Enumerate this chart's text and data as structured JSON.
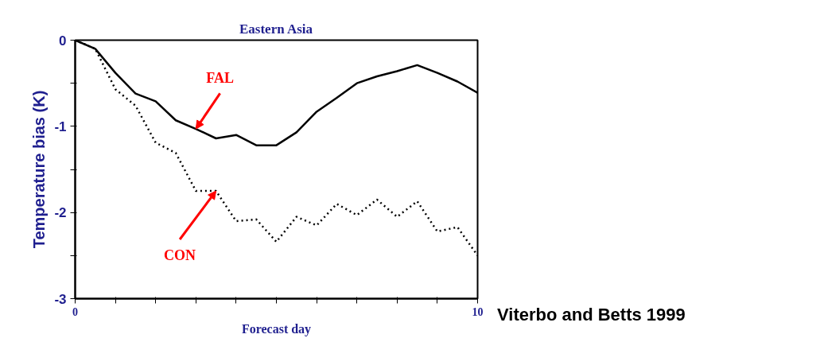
{
  "chart_data": {
    "type": "line",
    "title": "Eastern Asia",
    "xlabel": "Forecast day",
    "ylabel": "Temperature bias (K)",
    "x": [
      0,
      0.5,
      1,
      1.5,
      2,
      2.5,
      3,
      3.5,
      4,
      4.5,
      5,
      5.5,
      6,
      6.5,
      7,
      7.5,
      8,
      8.5,
      9,
      9.5,
      10
    ],
    "series": [
      {
        "color": "#000000",
        "line_style": "solid",
        "values": [
          0,
          -0.1,
          -0.38,
          -0.62,
          -0.71,
          -0.93,
          -1.03,
          -1.14,
          -1.1,
          -1.22,
          -1.22,
          -1.07,
          -0.83,
          -0.67,
          -0.5,
          -0.42,
          -0.36,
          -0.29,
          -0.38,
          -0.48,
          -0.61
        ]
      },
      {
        "color": "#000000",
        "line_style": "dotted",
        "values": [
          0,
          -0.1,
          -0.57,
          -0.76,
          -1.19,
          -1.31,
          -1.75,
          -1.75,
          -2.1,
          -2.08,
          -2.34,
          -2.05,
          -2.15,
          -1.9,
          -2.03,
          -1.85,
          -2.05,
          -1.87,
          -2.22,
          -2.17,
          -2.5
        ]
      }
    ],
    "xlim": [
      0,
      10
    ],
    "ylim": [
      -3,
      0
    ],
    "xticks": [
      0,
      {
        "value": 1,
        "label": null
      },
      {
        "value": 2,
        "label": null
      },
      {
        "value": 3,
        "label": null
      },
      {
        "value": 4,
        "label": null
      },
      {
        "value": 5,
        "label": null
      },
      {
        "value": 6,
        "label": null
      },
      {
        "value": 7,
        "label": null
      },
      {
        "value": 8,
        "label": null
      },
      {
        "value": 9,
        "label": null
      },
      10
    ],
    "yticks": [
      0,
      {
        "value": -0.5,
        "label": null
      },
      -1,
      {
        "value": -1.5,
        "label": null
      },
      -2,
      {
        "value": -2.5,
        "label": null
      },
      -3
    ],
    "annotations": [
      {
        "text": "FAL",
        "x": 3.0,
        "y": -1.03
      },
      {
        "text": "CON",
        "x": 3.5,
        "y": -1.75
      },
      "Viterbo and Betts 1999"
    ],
    "grid": false,
    "legend": false
  }
}
